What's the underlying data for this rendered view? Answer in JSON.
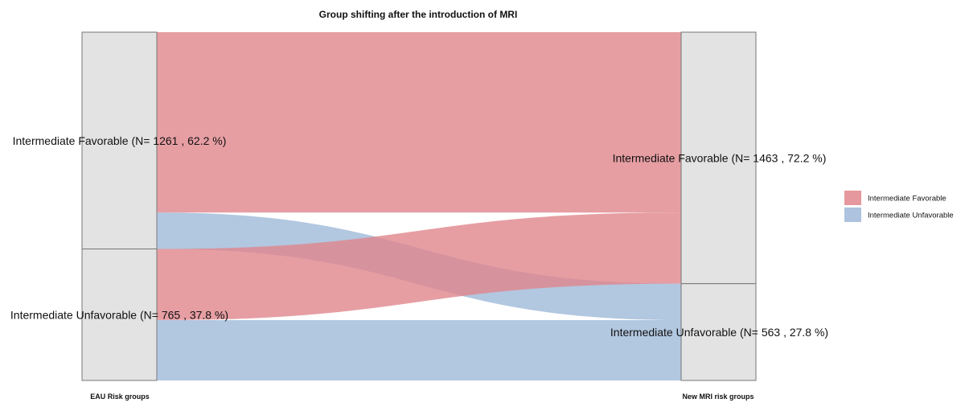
{
  "chart_data": {
    "type": "alluvial",
    "title": "Group shifting after the introduction of MRI",
    "axes": [
      "EAU Risk groups",
      "New MRI risk groups"
    ],
    "left_strata": [
      {
        "name": "Intermediate Favorable",
        "n": 1261,
        "label": "Intermediate Favorable (N= 1261 , 62.2 %)"
      },
      {
        "name": "Intermediate Unfavorable",
        "n": 765,
        "label": "Intermediate Unfavorable (N= 765 , 37.8 %)"
      }
    ],
    "right_strata": [
      {
        "name": "Intermediate Favorable",
        "n": 1463,
        "label": "Intermediate Favorable (N= 1463 , 72.2 %)"
      },
      {
        "name": "Intermediate Unfavorable",
        "n": 563,
        "label": "Intermediate Unfavorable (N= 563 , 27.8 %)"
      }
    ],
    "flows": [
      {
        "from": "Intermediate Favorable",
        "to": "Intermediate Favorable",
        "value": 1049,
        "fill": "Intermediate Favorable"
      },
      {
        "from": "Intermediate Favorable",
        "to": "Intermediate Unfavorable",
        "value": 212,
        "fill": "Intermediate Unfavorable"
      },
      {
        "from": "Intermediate Unfavorable",
        "to": "Intermediate Favorable",
        "value": 414,
        "fill": "Intermediate Favorable"
      },
      {
        "from": "Intermediate Unfavorable",
        "to": "Intermediate Unfavorable",
        "value": 351,
        "fill": "Intermediate Unfavorable"
      }
    ],
    "legend": [
      {
        "name": "Intermediate Favorable",
        "color": "#e0868c"
      },
      {
        "name": "Intermediate Unfavorable",
        "color": "#9fb9d8"
      }
    ],
    "legend_position": "right"
  }
}
